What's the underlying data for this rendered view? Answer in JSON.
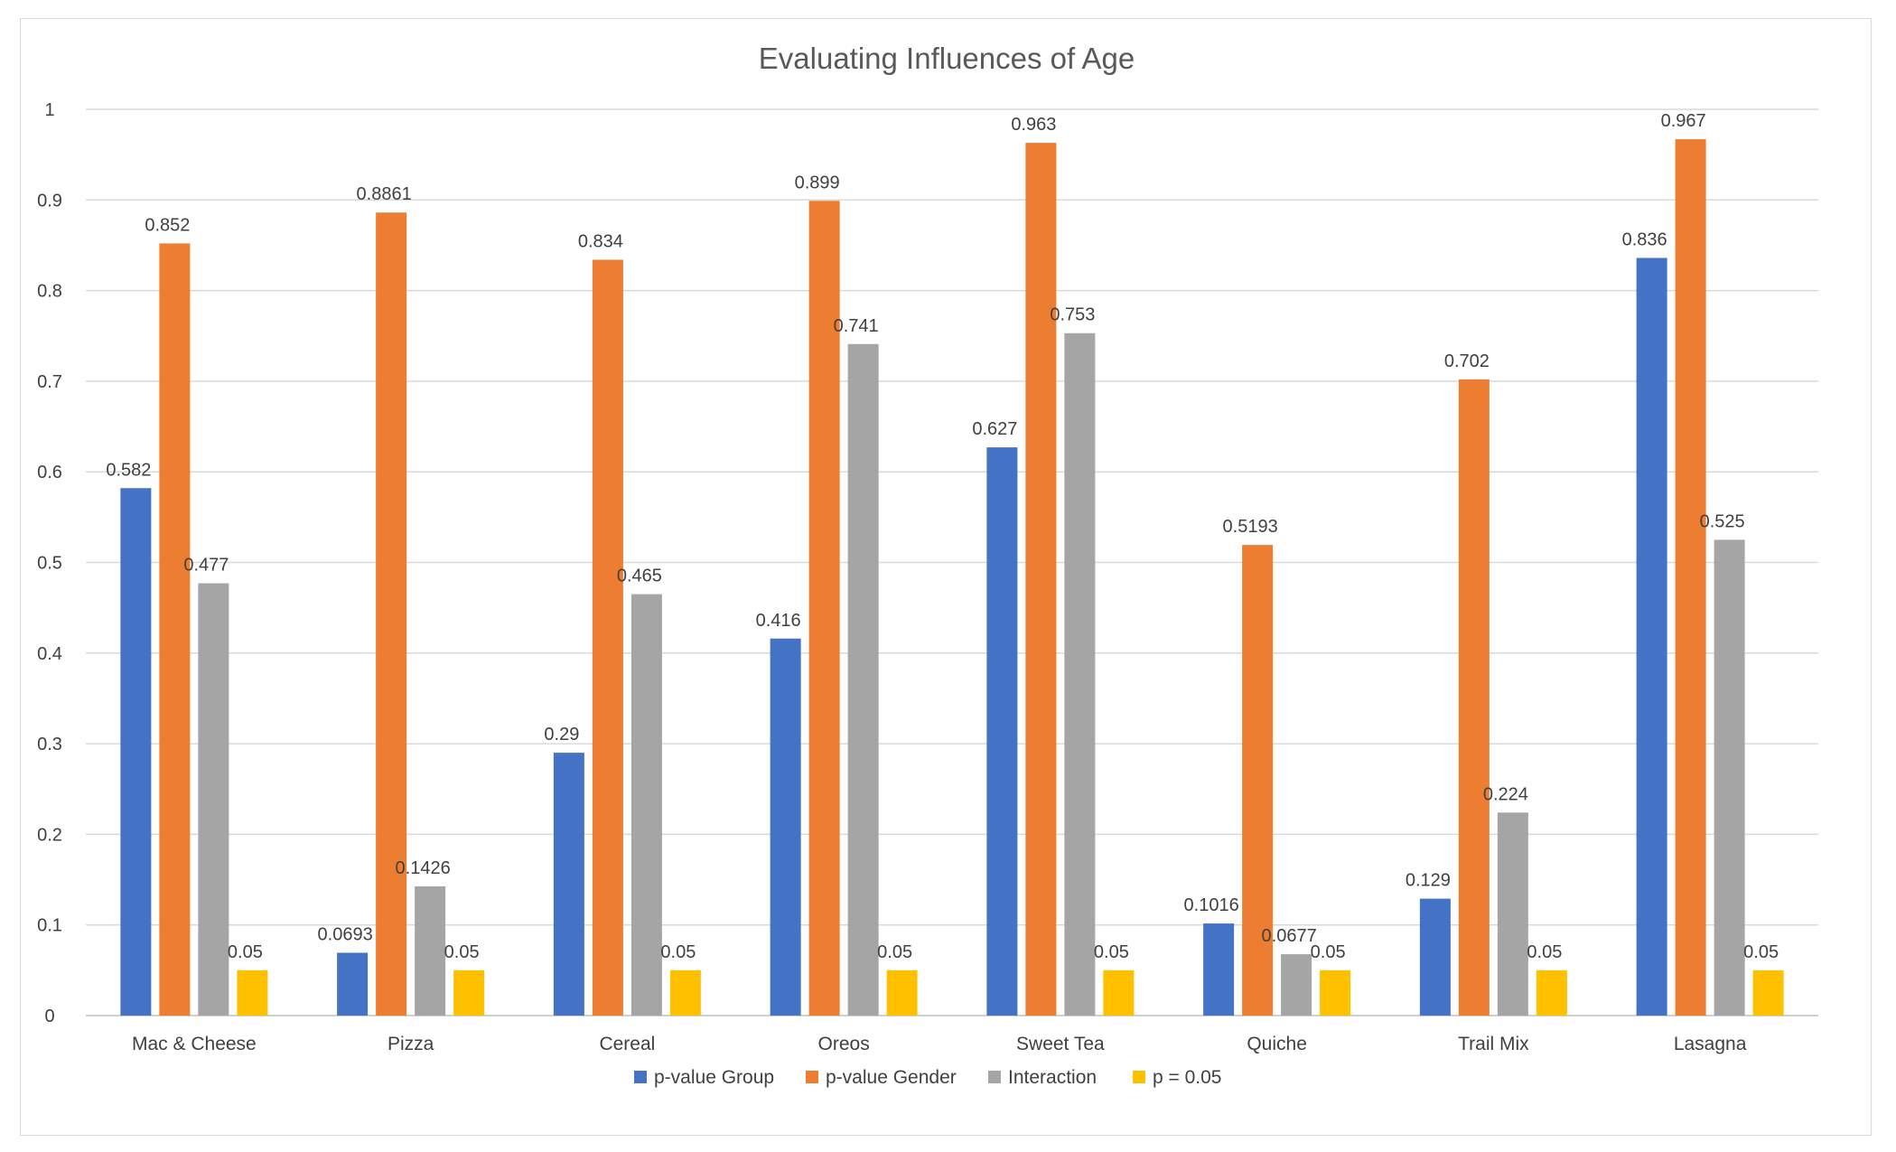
{
  "chart_data": {
    "type": "bar",
    "title": "Evaluating Influences of Age",
    "xlabel": "",
    "ylabel": "",
    "ylim": [
      0,
      1
    ],
    "yticks": [
      "0",
      "0.1",
      "0.2",
      "0.3",
      "0.4",
      "0.5",
      "0.6",
      "0.7",
      "0.8",
      "0.9",
      "1"
    ],
    "grid": true,
    "legend_position": "bottom",
    "categories": [
      "Mac & Cheese",
      "Pizza",
      "Cereal",
      "Oreos",
      "Sweet Tea",
      "Quiche",
      "Trail Mix",
      "Lasagna"
    ],
    "series": [
      {
        "name": "p-value Group",
        "color": "#4472c4",
        "values": [
          0.582,
          0.0693,
          0.29,
          0.416,
          0.627,
          0.1016,
          0.129,
          0.836
        ],
        "labels": [
          "0.582",
          "0.0693",
          "0.29",
          "0.416",
          "0.627",
          "0.1016",
          "0.129",
          "0.836"
        ]
      },
      {
        "name": "p-value Gender",
        "color": "#ed7d31",
        "values": [
          0.852,
          0.8861,
          0.834,
          0.899,
          0.963,
          0.5193,
          0.702,
          0.967
        ],
        "labels": [
          "0.852",
          "0.8861",
          "0.834",
          "0.899",
          "0.963",
          "0.5193",
          "0.702",
          "0.967"
        ]
      },
      {
        "name": "Interaction",
        "color": "#a5a5a5",
        "values": [
          0.477,
          0.1426,
          0.465,
          0.741,
          0.753,
          0.0677,
          0.224,
          0.525
        ],
        "labels": [
          "0.477",
          "0.1426",
          "0.465",
          "0.741",
          "0.753",
          "0.0677",
          "0.224",
          "0.525"
        ]
      },
      {
        "name": "p = 0.05",
        "color": "#ffc000",
        "values": [
          0.05,
          0.05,
          0.05,
          0.05,
          0.05,
          0.05,
          0.05,
          0.05
        ],
        "labels": [
          "0.05",
          "0.05",
          "0.05",
          "0.05",
          "0.05",
          "0.05",
          "0.05",
          "0.05"
        ]
      }
    ]
  }
}
